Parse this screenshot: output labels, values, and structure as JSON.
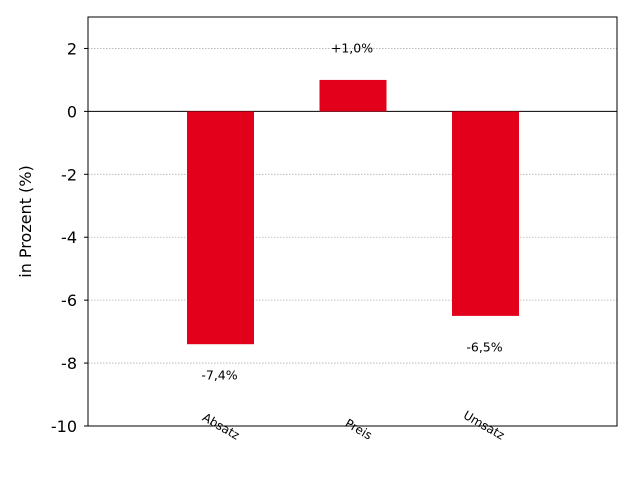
{
  "chart_data": {
    "type": "bar",
    "ylabel": "in Prozent (%)",
    "categories": [
      "Absatz",
      "Preis",
      "Umsatz"
    ],
    "values": [
      -7.4,
      1.0,
      -6.5
    ],
    "data_labels": [
      "-7,4%",
      "+1,0%",
      "-6,5%"
    ],
    "ylim": [
      -10,
      3
    ],
    "yticks": [
      -10,
      -8,
      -6,
      -4,
      -2,
      0,
      2
    ],
    "ytick_labels": [
      "-10",
      "-8",
      "-6",
      "-4",
      "-2",
      "0",
      "2"
    ],
    "grid": true,
    "bar_color": "#e2001a"
  }
}
